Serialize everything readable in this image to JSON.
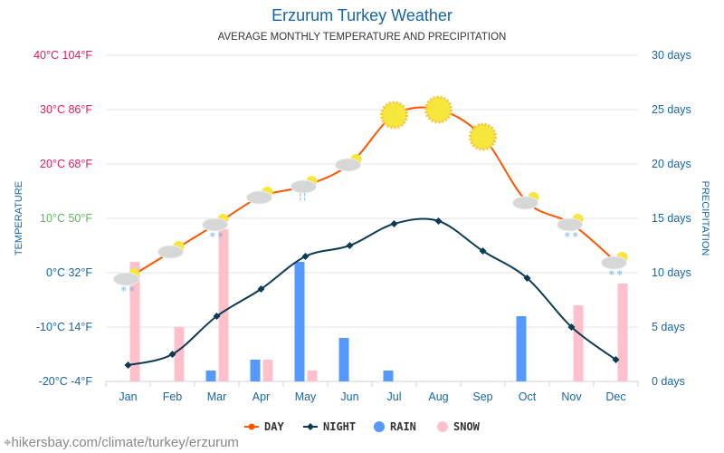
{
  "chart_data": {
    "type": "line",
    "title": "Erzurum Turkey Weather",
    "subtitle": "AVERAGE MONTHLY TEMPERATURE AND PRECIPITATION",
    "ylabel": "TEMPERATURE",
    "y2label": "PRECIPITATION",
    "categories": [
      "Jan",
      "Feb",
      "Mar",
      "Apr",
      "May",
      "Jun",
      "Jul",
      "Aug",
      "Sep",
      "Oct",
      "Nov",
      "Dec"
    ],
    "ylim": [
      -20,
      40
    ],
    "y2lim": [
      0,
      30
    ],
    "yticks": [
      {
        "v": 40,
        "label": "40°C 104°F",
        "color": "#e8175d"
      },
      {
        "v": 30,
        "label": "30°C 86°F",
        "color": "#e8175d"
      },
      {
        "v": 20,
        "label": "20°C 68°F",
        "color": "#e8175d"
      },
      {
        "v": 10,
        "label": "10°C 50°F",
        "color": "#5cb85c"
      },
      {
        "v": 0,
        "label": "0°C 32°F",
        "color": "#1565a8"
      },
      {
        "v": -10,
        "label": "-10°C 14°F",
        "color": "#1565a8"
      },
      {
        "v": -20,
        "label": "-20°C -4°F",
        "color": "#1565a8"
      }
    ],
    "y2ticks": [
      {
        "v": 30,
        "label": "30 days"
      },
      {
        "v": 25,
        "label": "25 days"
      },
      {
        "v": 20,
        "label": "20 days"
      },
      {
        "v": 15,
        "label": "15 days"
      },
      {
        "v": 10,
        "label": "10 days"
      },
      {
        "v": 5,
        "label": "5 days"
      },
      {
        "v": 0,
        "label": "0 days"
      }
    ],
    "grid": true,
    "legend_position": "bottom",
    "series": [
      {
        "name": "DAY",
        "type": "line",
        "axis": "temperature",
        "color": "#ff5500",
        "values": [
          -1,
          4,
          9,
          14,
          16,
          20,
          29,
          30,
          25,
          13,
          9,
          2
        ]
      },
      {
        "name": "NIGHT",
        "type": "line",
        "axis": "temperature",
        "color": "#0c3b52",
        "values": [
          -17,
          -15,
          -8,
          -3,
          3,
          5,
          9,
          9.5,
          4,
          -1,
          -10,
          -16
        ]
      },
      {
        "name": "RAIN",
        "type": "bar",
        "axis": "precipitation",
        "color": "#5599ff",
        "values": [
          0,
          0,
          1,
          2,
          11,
          4,
          1,
          0,
          0,
          6,
          0,
          0
        ]
      },
      {
        "name": "SNOW",
        "type": "bar",
        "axis": "precipitation",
        "color": "#ffc0cb",
        "values": [
          11,
          5,
          14,
          2,
          1,
          0,
          0,
          0,
          0,
          0,
          7,
          9
        ]
      }
    ],
    "weather_icons": [
      "snow-cloud",
      "partly-cloudy",
      "snow-cloud",
      "partly-cloudy",
      "rain-cloud",
      "partly-cloudy",
      "sun",
      "sun",
      "sun",
      "partly-cloudy",
      "snow-cloud",
      "snow-cloud"
    ]
  },
  "credit": "hikersbay.com/climate/turkey/erzurum"
}
